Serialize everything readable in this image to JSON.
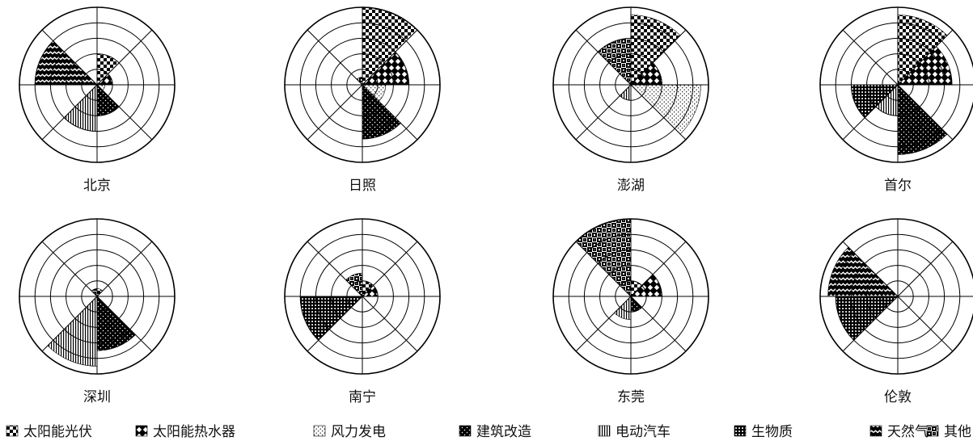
{
  "chart_data": {
    "type": "polar-area",
    "rings": 5,
    "categories": [
      "太阳能光伏",
      "太阳能热水器",
      "风力发电",
      "建筑改造",
      "电动汽车",
      "生物质",
      "天然气",
      "其他"
    ],
    "patterns": [
      "checker-small",
      "checker-diamond",
      "dots-sparse",
      "dots-dense",
      "vertical-lines",
      "grid",
      "waves",
      "dense-other"
    ],
    "legend": [
      {
        "label": "太阳能光伏"
      },
      {
        "label": "太阳能热水器"
      },
      {
        "label": "风力发电"
      },
      {
        "label": "建筑改造"
      },
      {
        "label": "电动汽车"
      },
      {
        "label": "生物质"
      },
      {
        "label": "天然气"
      },
      {
        "label": "其他"
      }
    ],
    "cities": [
      {
        "name": "北京",
        "values": [
          2,
          1,
          0.5,
          2,
          3,
          0,
          4,
          0
        ]
      },
      {
        "name": "日照",
        "values": [
          5,
          3,
          1.5,
          3.5,
          0,
          0,
          0,
          0.5
        ]
      },
      {
        "name": "澎湖",
        "values": [
          4.5,
          2,
          4.5,
          0,
          1,
          0,
          0,
          3
        ]
      },
      {
        "name": "首尔",
        "values": [
          4.5,
          3.5,
          0,
          4.5,
          2,
          3,
          0,
          0
        ]
      },
      {
        "name": "深圳",
        "values": [
          0.5,
          0,
          0,
          3.5,
          4.5,
          0,
          0,
          0.5
        ]
      },
      {
        "name": "南宁",
        "values": [
          1,
          1,
          0,
          0,
          0,
          4,
          0,
          1.5
        ]
      },
      {
        "name": "东莞",
        "values": [
          1,
          2,
          0,
          1,
          1.5,
          0,
          0,
          5
        ]
      },
      {
        "name": "伦敦",
        "values": [
          0,
          0,
          0,
          0,
          0,
          4,
          4.5,
          0
        ]
      }
    ]
  }
}
